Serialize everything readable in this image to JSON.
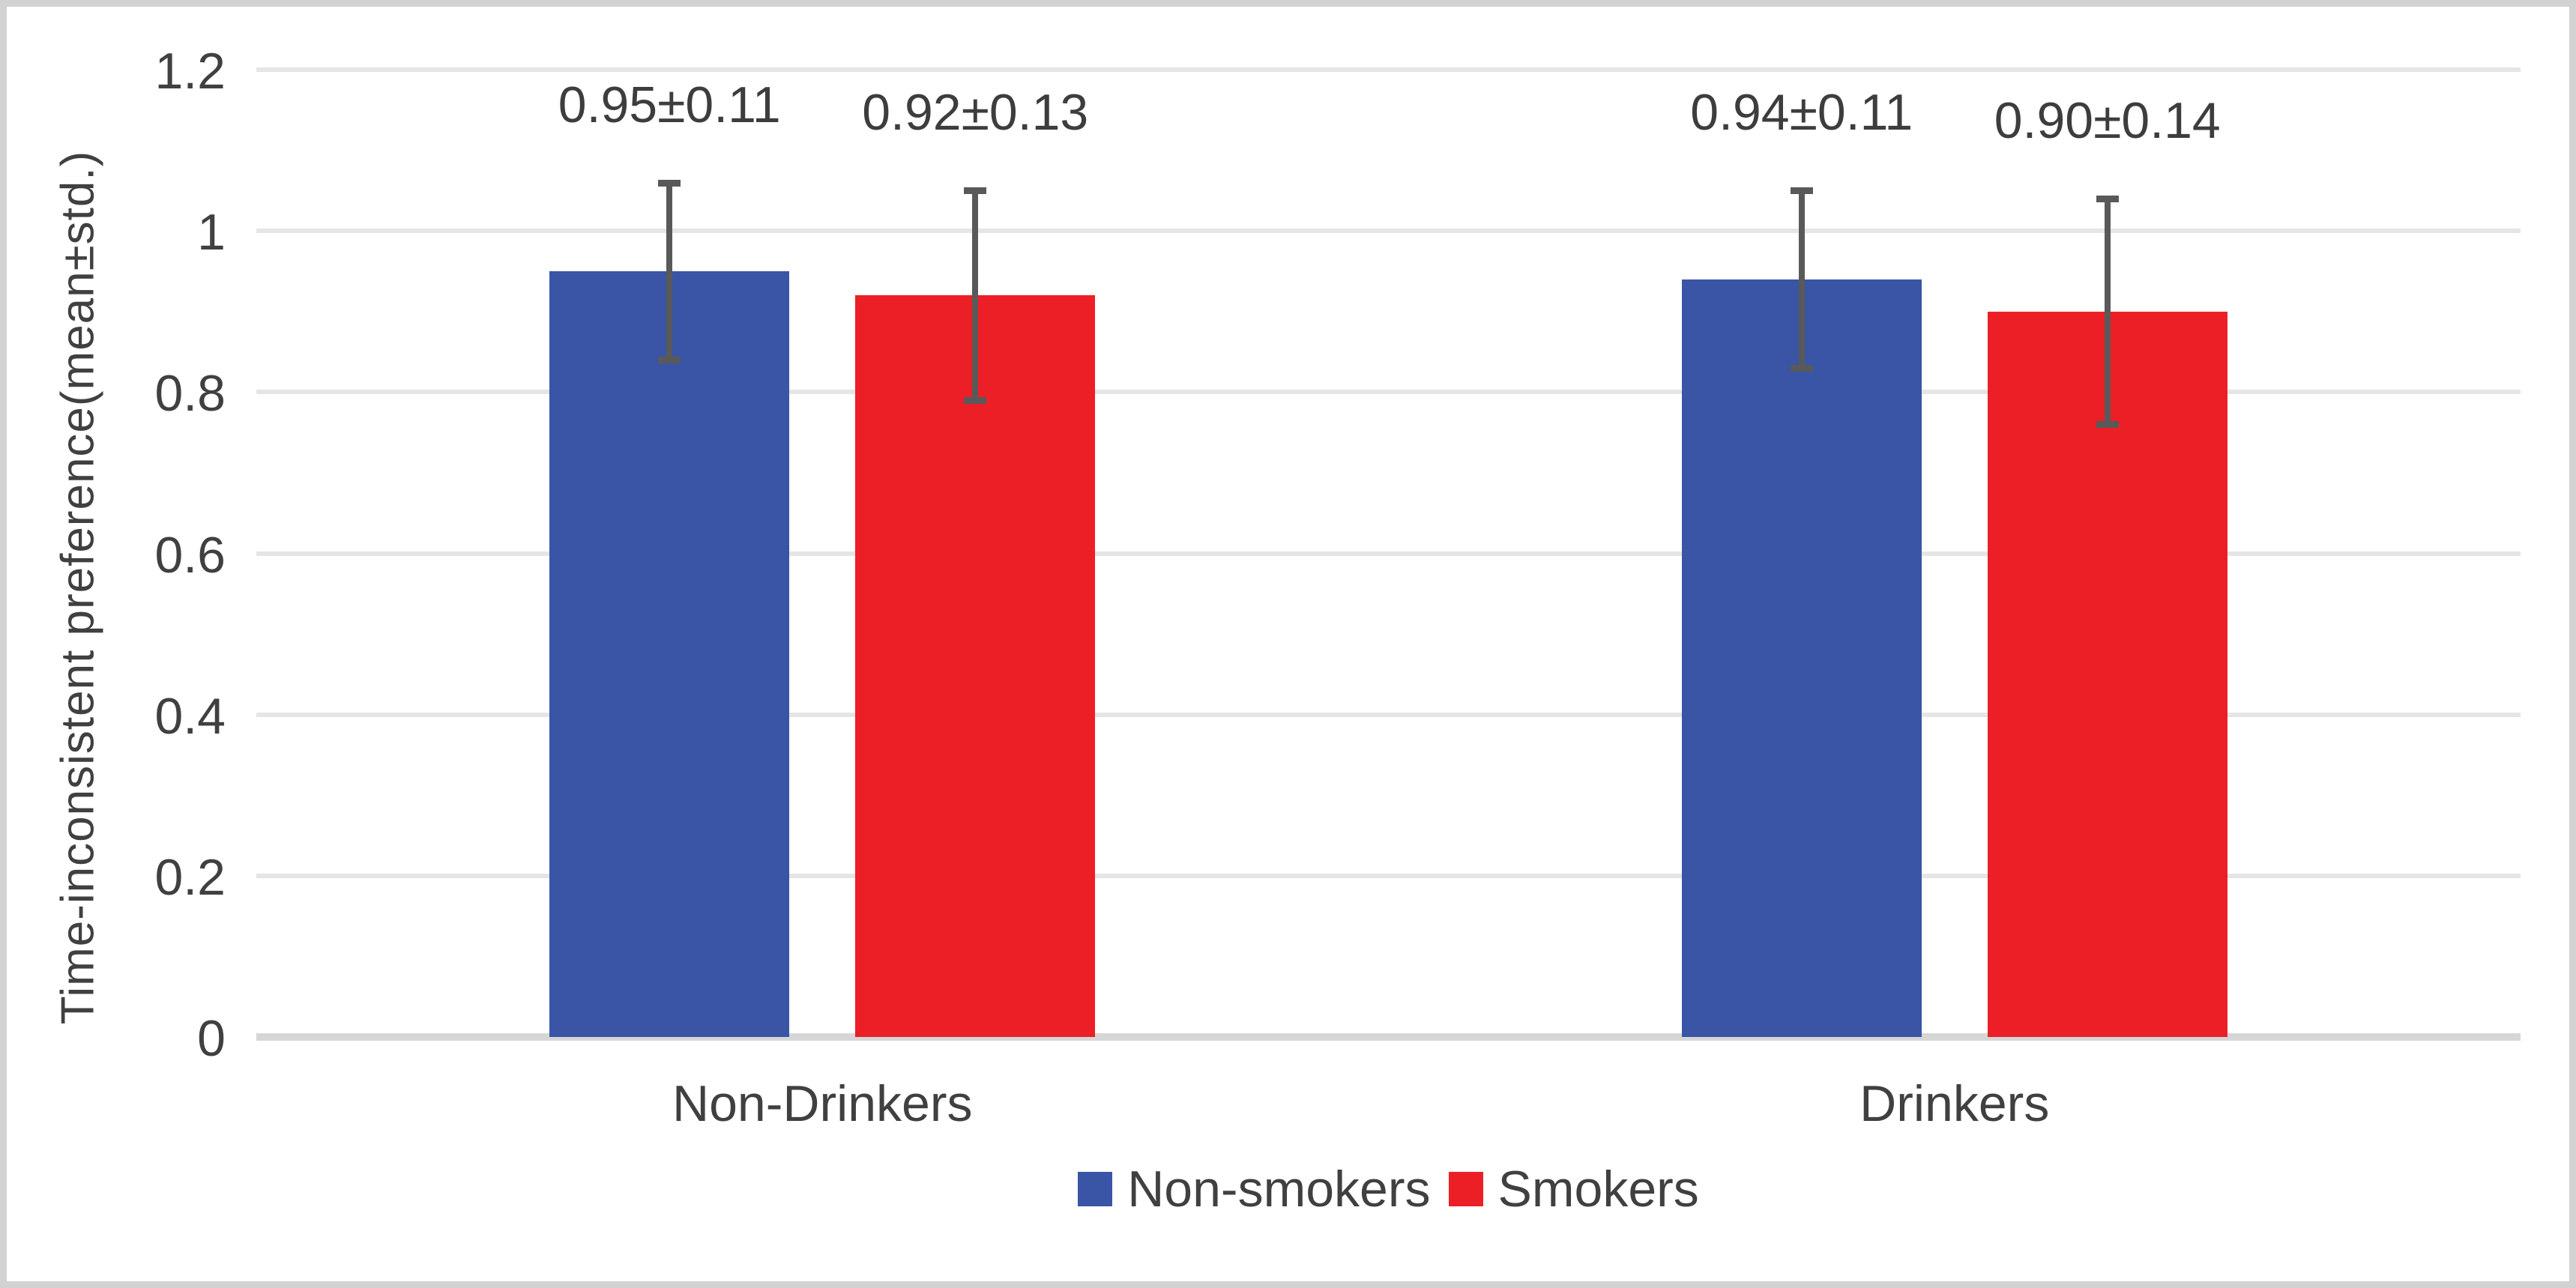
{
  "chart_data": {
    "type": "bar",
    "categories": [
      "Non-Drinkers",
      "Drinkers"
    ],
    "series": [
      {
        "name": "Non-smokers",
        "color": "#3a55a6",
        "means": [
          0.95,
          0.94
        ],
        "stds": [
          0.11,
          0.11
        ],
        "data_labels": [
          "0.95±0.11",
          "0.94±0.11"
        ]
      },
      {
        "name": "Smokers",
        "color": "#ec1f26",
        "means": [
          0.92,
          0.9
        ],
        "stds": [
          0.13,
          0.14
        ],
        "data_labels": [
          "0.92±0.13",
          "0.90±0.14"
        ]
      }
    ],
    "ylabel": "Time-inconsistent preference(mean±std.)",
    "ylim": [
      0,
      1.2
    ],
    "yticks": [
      0,
      0.2,
      0.4,
      0.6,
      0.8,
      1,
      1.2
    ],
    "ytick_labels": [
      "0",
      "0.2",
      "0.4",
      "0.6",
      "0.8",
      "1",
      "1.2"
    ],
    "grid": true,
    "legend_position": "bottom-center",
    "error_bars": true,
    "colors": {
      "gridline": "#e5e5e5",
      "axis_line": "#d6d6d6",
      "error_bar": "#595959",
      "text": "#404040",
      "frame_border": "#d2d2d2"
    }
  }
}
